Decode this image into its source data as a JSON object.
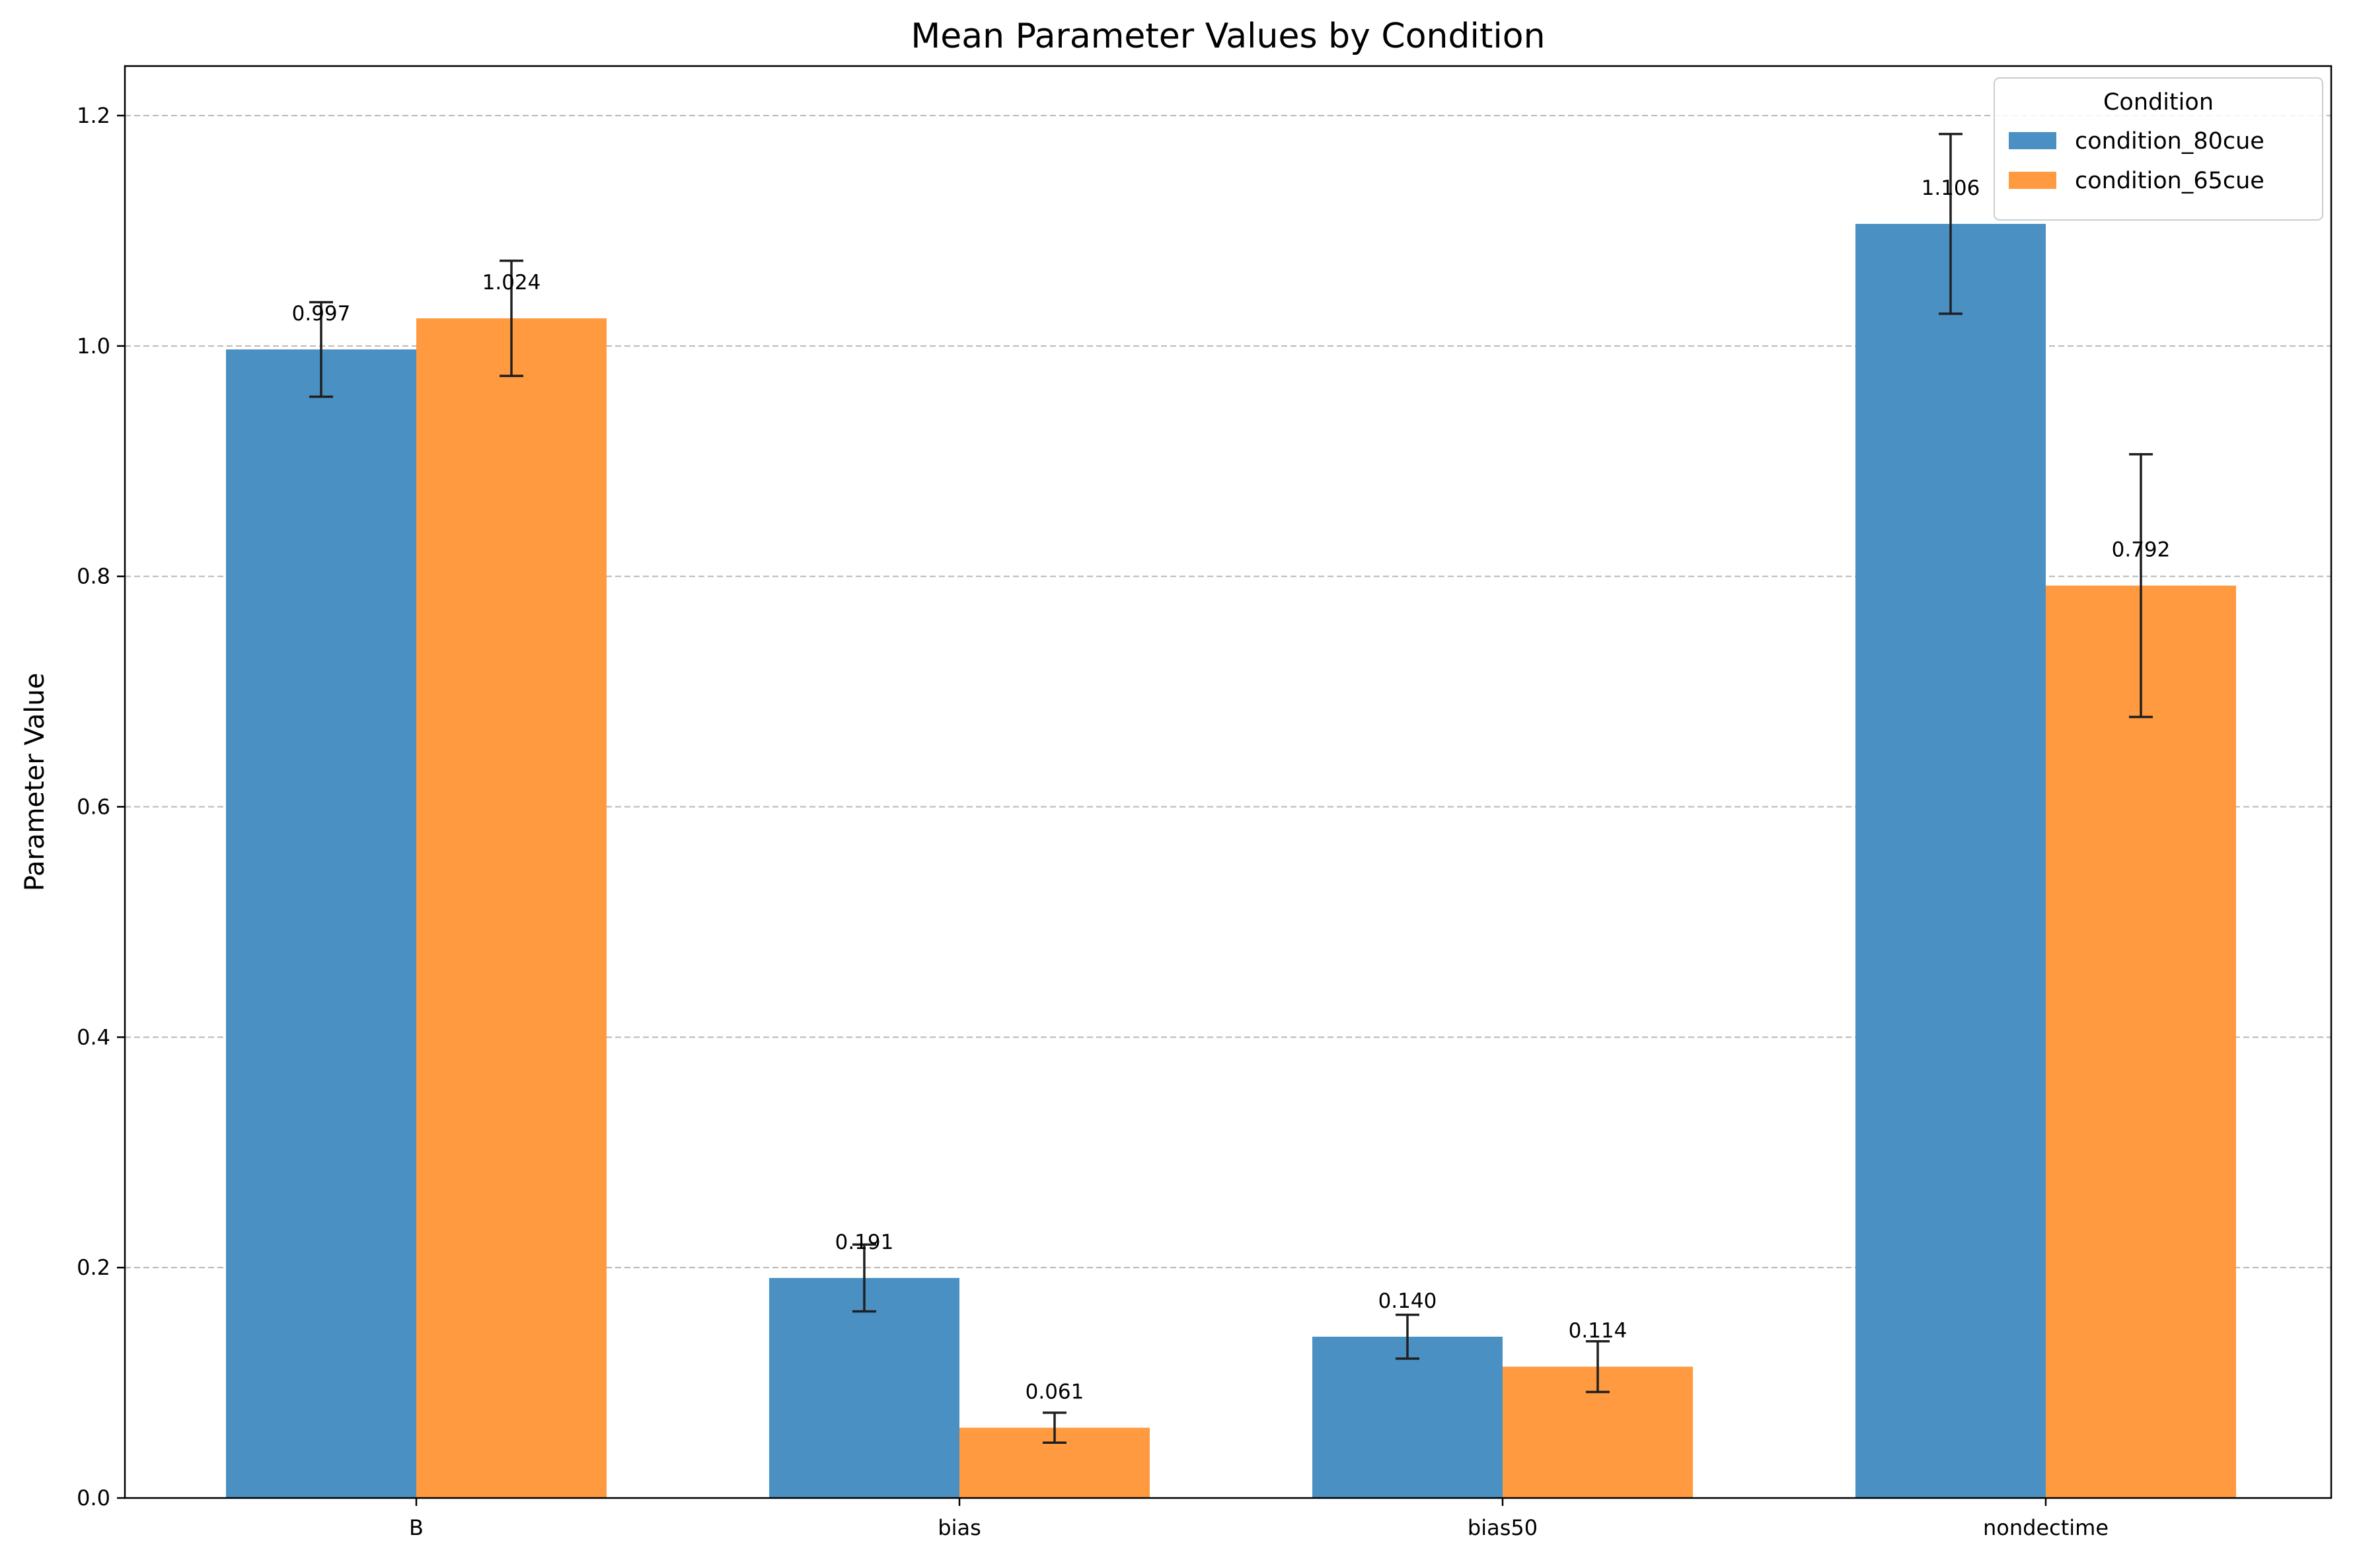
{
  "chart_data": {
    "type": "bar",
    "title": "Mean Parameter Values by Condition",
    "xlabel": "",
    "ylabel": "Parameter Value",
    "categories": [
      "B",
      "bias",
      "bias50",
      "nondectime"
    ],
    "series": [
      {
        "name": "condition_80cue",
        "color": "#4a90c2",
        "values": [
          0.997,
          0.191,
          0.14,
          1.106
        ],
        "errors": [
          0.041,
          0.029,
          0.019,
          0.078
        ],
        "labels": [
          "0.997",
          "0.191",
          "0.140",
          "1.106"
        ]
      },
      {
        "name": "condition_65cue",
        "color": "#ff9a40",
        "values": [
          1.024,
          0.061,
          0.114,
          0.792
        ],
        "errors": [
          0.05,
          0.013,
          0.022,
          0.114
        ],
        "labels": [
          "1.024",
          "0.061",
          "0.114",
          "0.792"
        ]
      }
    ],
    "ylim": [
      0,
      1.243
    ],
    "yticks": [
      "0.0",
      "0.2",
      "0.4",
      "0.6",
      "0.8",
      "1.0",
      "1.2"
    ],
    "grid": "y-dashed",
    "legend": {
      "title": "Condition",
      "placement": "top-right"
    }
  }
}
